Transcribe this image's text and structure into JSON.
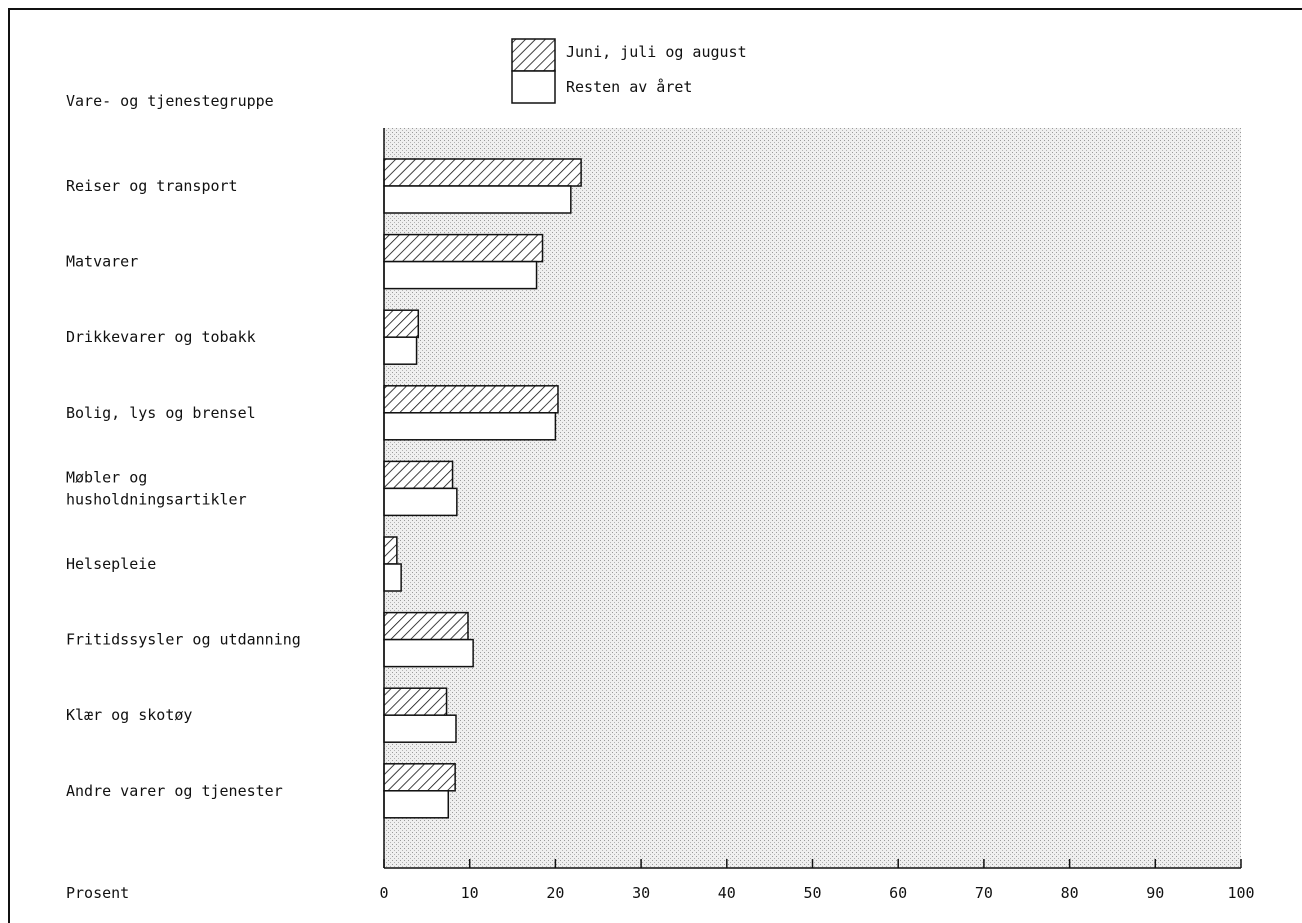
{
  "chart_data": {
    "type": "bar",
    "orientation": "horizontal",
    "title": "",
    "category_axis_label": "Vare- og tjenestegruppe",
    "xlabel": "Prosent",
    "xlim": [
      0,
      100
    ],
    "ticks": [
      "0",
      "10",
      "20",
      "30",
      "40",
      "50",
      "60",
      "70",
      "80",
      "90",
      "100"
    ],
    "categories": [
      [
        "Reiser og transport"
      ],
      [
        "Matvarer"
      ],
      [
        "Drikkevarer og tobakk"
      ],
      [
        "Bolig, lys og brensel"
      ],
      [
        "Møbler og",
        "husholdningsartikler"
      ],
      [
        "Helsepleie"
      ],
      [
        "Fritidssysler og utdanning"
      ],
      [
        "Klær og skotøy"
      ],
      [
        "Andre varer og tjenester"
      ]
    ],
    "series": [
      {
        "name": "Juni, juli og august",
        "pattern": "hatched",
        "values": [
          23.0,
          18.5,
          4.0,
          20.3,
          8.0,
          1.5,
          9.8,
          7.3,
          8.3
        ]
      },
      {
        "name": "Resten av året",
        "pattern": "white",
        "values": [
          21.8,
          17.8,
          3.8,
          20.0,
          8.5,
          2.0,
          10.4,
          8.4,
          7.5
        ]
      }
    ],
    "legend_position": "top-center",
    "grid": false,
    "colors": {
      "plot_background": "#e6e6e6",
      "bar_outline": "#111111",
      "hatch": "#111111",
      "bar_fill": "#ffffff"
    }
  }
}
